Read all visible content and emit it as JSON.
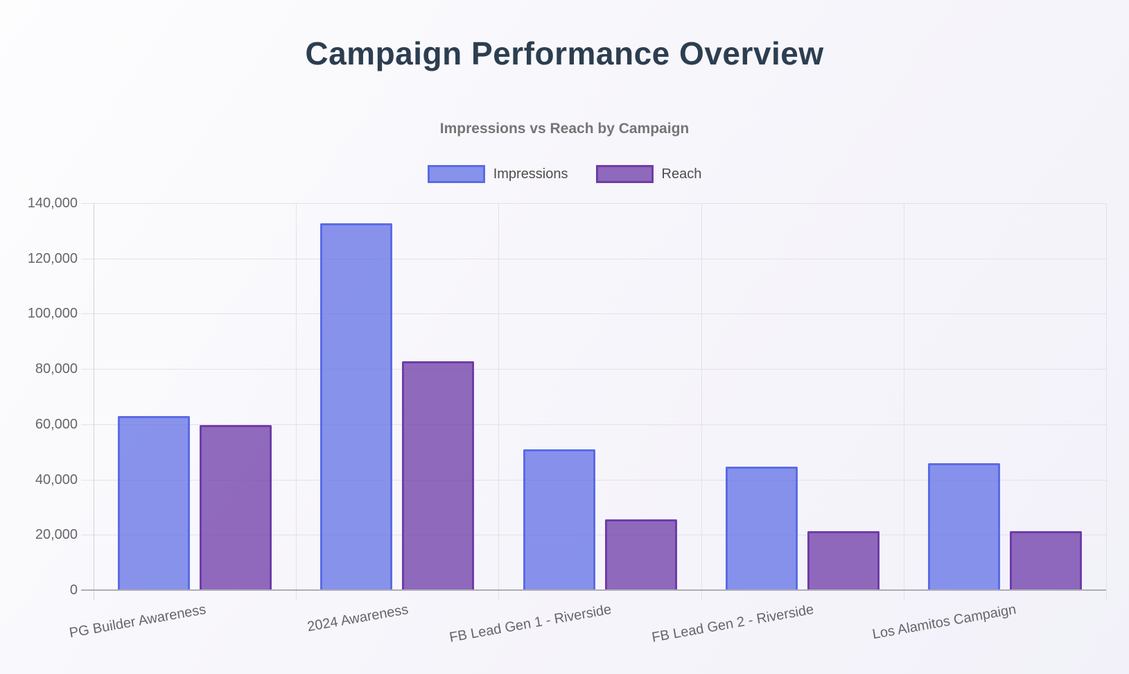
{
  "header": {
    "title": "Campaign Performance Overview"
  },
  "chart_data": {
    "type": "bar",
    "title": "Impressions vs Reach by Campaign",
    "categories": [
      "PG Builder Awareness",
      "2024 Awareness",
      "FB Lead Gen 1 - Riverside",
      "FB Lead Gen 2 - Riverside",
      "Los Alamitos Campaign"
    ],
    "series": [
      {
        "name": "Impressions",
        "values": [
          62900,
          132700,
          50900,
          44600,
          45900
        ],
        "fill": "rgba(91,107,229,0.72)",
        "border": "#5b6be5"
      },
      {
        "name": "Reach",
        "values": [
          59800,
          82800,
          25600,
          21300,
          21300
        ],
        "fill": "rgba(110,61,168,0.76)",
        "border": "#6e3da8"
      }
    ],
    "ylim": [
      0,
      140000
    ],
    "y_step": 20000,
    "y_ticks": [
      "0",
      "20,000",
      "40,000",
      "60,000",
      "80,000",
      "100,000",
      "120,000",
      "140,000"
    ],
    "grid": true,
    "legend_position": "top",
    "x_label_rotation_deg": -10
  },
  "colors": {
    "title": "#2c3e50",
    "subtitle": "#757575",
    "legend_text": "#4d4d4d",
    "tick_text": "#65656b",
    "gridline": "#e2e1e8",
    "axis_baseline": "#aeadb5"
  }
}
